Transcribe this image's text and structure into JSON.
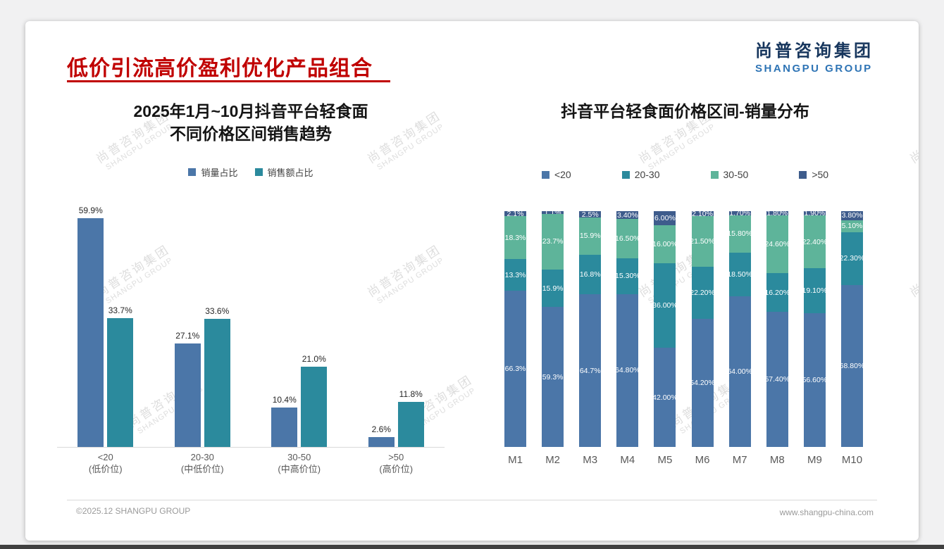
{
  "page": {
    "title": "低价引流高价盈利优化产品组合",
    "logo": {
      "cn": "尚普咨询集团",
      "en": "SHANGPU GROUP"
    },
    "watermark": {
      "cn": "尚普咨询集团",
      "en": "SHANGPU GROUP"
    },
    "footer": {
      "left": "©2025.12 SHANGPU GROUP",
      "right": "www.shangpu-china.com"
    }
  },
  "colors": {
    "blue": "#4b76a8",
    "teal": "#2b8a9d",
    "green": "#5eb49a",
    "navy": "#3e5c8c",
    "red": "#c00000"
  },
  "chart_data": [
    {
      "type": "bar",
      "title_lines": [
        "2025年1月~10月抖音平台轻食面",
        "不同价格区间销售趋势"
      ],
      "categories": [
        "<20",
        "20-30",
        "30-50",
        ">50"
      ],
      "category_sublabels": [
        "(低价位)",
        "(中低价位)",
        "(中高价位)",
        "(高价位)"
      ],
      "series": [
        {
          "name": "销量占比",
          "color_key": "blue",
          "values": [
            59.9,
            27.1,
            10.4,
            2.6
          ]
        },
        {
          "name": "销售额占比",
          "color_key": "teal",
          "values": [
            33.7,
            33.6,
            21.0,
            11.8
          ]
        }
      ],
      "value_suffix": "%",
      "ylim": [
        0,
        62
      ],
      "grid": false,
      "legend_position": "top"
    },
    {
      "type": "stacked-bar-100",
      "title": "抖音平台轻食面价格区间-销量分布",
      "categories": [
        "M1",
        "M2",
        "M3",
        "M4",
        "M5",
        "M6",
        "M7",
        "M8",
        "M9",
        "M10"
      ],
      "series": [
        {
          "name": "<20",
          "color_key": "blue",
          "values": [
            66.3,
            59.3,
            64.7,
            64.8,
            42.0,
            54.2,
            64.0,
            57.4,
            56.6,
            68.8
          ],
          "labels": [
            "66.3%",
            "59.3%",
            "64.7%",
            "64.80%",
            "42.00%",
            "54.20%",
            "64.00%",
            "57.40%",
            "56.60%",
            "68.80%"
          ]
        },
        {
          "name": "20-30",
          "color_key": "teal",
          "values": [
            13.3,
            15.9,
            16.8,
            15.3,
            36.0,
            22.2,
            18.5,
            16.2,
            19.1,
            22.3
          ],
          "labels": [
            "13.3%",
            "15.9%",
            "16.8%",
            "15.30%",
            "36.00%",
            "22.20%",
            "18.50%",
            "16.20%",
            "19.10%",
            "22.30%"
          ]
        },
        {
          "name": "30-50",
          "color_key": "green",
          "values": [
            18.3,
            23.7,
            15.9,
            16.5,
            16.0,
            21.5,
            15.8,
            24.6,
            22.4,
            5.1
          ],
          "labels": [
            "18.3%",
            "23.7%",
            "15.9%",
            "16.50%",
            "16.00%",
            "21.50%",
            "15.80%",
            "24.60%",
            "22.40%",
            "5.10%"
          ]
        },
        {
          "name": ">50",
          "color_key": "navy",
          "values": [
            2.1,
            1.1,
            2.5,
            3.4,
            6.0,
            2.1,
            1.7,
            1.8,
            1.9,
            3.8
          ],
          "labels": [
            "2.1%",
            "1.1%",
            "2.5%",
            "3.40%",
            "6.00%",
            "2.10%",
            "1.70%",
            "1.80%",
            "1.90%",
            "3.80%"
          ]
        }
      ],
      "ylim": [
        0,
        100
      ],
      "grid": false,
      "legend_position": "top"
    }
  ]
}
